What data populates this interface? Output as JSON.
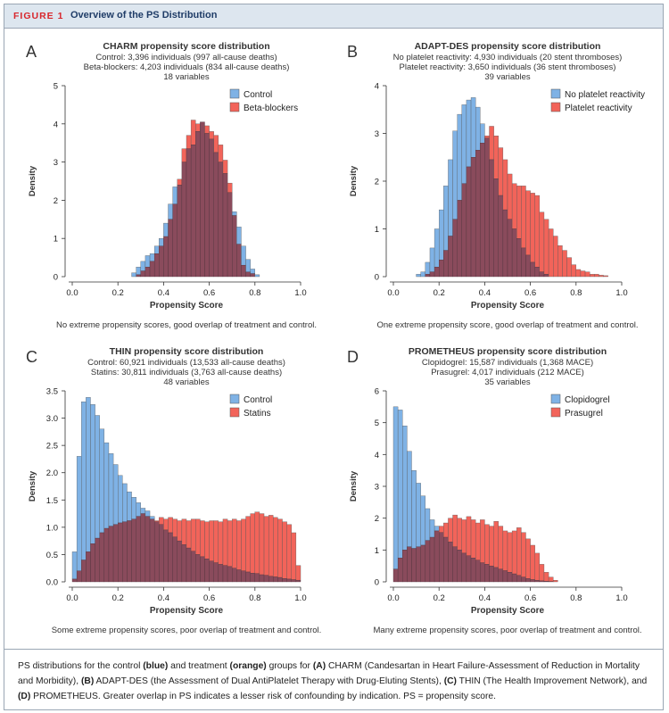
{
  "figure": {
    "label": "FIGURE 1",
    "title": "Overview of the PS Distribution"
  },
  "caption": {
    "t1": "PS distributions for the control ",
    "b1": "(blue)",
    "t2": " and treatment ",
    "b2": "(orange)",
    "t3": " groups for ",
    "b3": "(A)",
    "t4": " CHARM (Candesartan in Heart Failure-Assessment of Reduction in Mortality and Morbidity), ",
    "b4": "(B)",
    "t5": " ADAPT-DES (the Assessment of Dual AntiPlatelet Therapy with Drug-Eluting Stents), ",
    "b5": "(C)",
    "t6": " THIN (The Health Improvement Network), and ",
    "b6": "(D)",
    "t7": " PROMETHEUS. Greater overlap in PS indicates a lesser risk of confounding by indication. PS = propensity score."
  },
  "colors": {
    "control": "#7fb2e5",
    "treatment": "#f2645a",
    "overlap": "#8a4b5c"
  },
  "chart_data": [
    {
      "type": "histogram",
      "panel": "A",
      "title": "CHARM propensity score distribution",
      "subtitle": [
        "Control: 3,396 individuals (997 all-cause deaths)",
        "Beta-blockers: 4,203 individuals (834 all-cause deaths)",
        "18 variables"
      ],
      "xlabel": "Propensity Score",
      "ylabel": "Density",
      "xlim": [
        0,
        1
      ],
      "ylim": [
        0,
        5
      ],
      "xticks": [
        "0.0",
        "0.2",
        "0.4",
        "0.6",
        "0.8",
        "1.0"
      ],
      "yticks": [
        "0",
        "1",
        "2",
        "3",
        "4",
        "5"
      ],
      "legend_position": "top-right",
      "note": "No extreme propensity scores, good overlap of treatment and control.",
      "bin_width": 0.02,
      "series": [
        {
          "name": "Control",
          "x_start": 0.26,
          "values": [
            0.1,
            0.25,
            0.4,
            0.55,
            0.6,
            0.8,
            1.0,
            1.4,
            1.9,
            2.35,
            2.4,
            3.0,
            3.35,
            3.45,
            3.8,
            4.05,
            3.75,
            3.6,
            3.25,
            3.0,
            2.7,
            2.2,
            1.7,
            1.3,
            0.8,
            0.45,
            0.2,
            0.05
          ]
        },
        {
          "name": "Beta-blockers",
          "x_start": 0.28,
          "values": [
            0.05,
            0.15,
            0.25,
            0.4,
            0.6,
            0.8,
            1.05,
            1.5,
            1.9,
            2.55,
            3.35,
            3.7,
            4.1,
            4.0,
            4.05,
            3.95,
            3.8,
            3.7,
            3.45,
            3.05,
            2.45,
            1.6,
            0.85,
            0.3,
            0.12,
            0.08
          ]
        }
      ]
    },
    {
      "type": "histogram",
      "panel": "B",
      "title": "ADAPT-DES propensity score distribution",
      "subtitle": [
        "No platelet reactivity: 4,930 individuals (20 stent thromboses)",
        "Platelet reactivity: 3,650 individuals (36 stent thromboses)",
        "39 variables"
      ],
      "xlabel": "Propensity Score",
      "ylabel": "Density",
      "xlim": [
        0,
        1
      ],
      "ylim": [
        0,
        4
      ],
      "xticks": [
        "0.0",
        "0.2",
        "0.4",
        "0.6",
        "0.8",
        "1.0"
      ],
      "yticks": [
        "0",
        "1",
        "2",
        "3",
        "4"
      ],
      "legend_position": "top-right",
      "note": "One extreme propensity score, good overlap of treatment and control.",
      "bin_width": 0.02,
      "series": [
        {
          "name": "No platelet reactivity",
          "x_start": 0.1,
          "values": [
            0.05,
            0.1,
            0.3,
            0.6,
            1.0,
            1.4,
            1.9,
            2.45,
            3.05,
            3.4,
            3.6,
            3.7,
            3.75,
            3.55,
            3.2,
            2.9,
            2.45,
            2.05,
            1.7,
            1.4,
            1.2,
            1.0,
            0.8,
            0.6,
            0.45,
            0.3,
            0.2,
            0.1,
            0.05
          ]
        },
        {
          "name": "Platelet reactivity",
          "x_start": 0.14,
          "values": [
            0.05,
            0.1,
            0.2,
            0.35,
            0.55,
            0.85,
            1.2,
            1.6,
            1.95,
            2.3,
            2.5,
            2.65,
            2.8,
            2.95,
            3.15,
            2.95,
            2.7,
            2.45,
            2.15,
            1.95,
            1.9,
            1.9,
            1.8,
            1.75,
            1.7,
            1.35,
            1.2,
            1.0,
            0.85,
            0.65,
            0.55,
            0.4,
            0.25,
            0.15,
            0.12,
            0.1,
            0.05,
            0.05,
            0.03,
            0.02
          ]
        }
      ]
    },
    {
      "type": "histogram",
      "panel": "C",
      "title": "THIN propensity score distribution",
      "subtitle": [
        "Control: 60,921 individuals (13,533 all-cause deaths)",
        "Statins: 30,811 individuals (3,763 all-cause deaths)",
        "48 variables"
      ],
      "xlabel": "Propensity Score",
      "ylabel": "Density",
      "xlim": [
        0,
        1
      ],
      "ylim": [
        0,
        3.5
      ],
      "xticks": [
        "0.0",
        "0.2",
        "0.4",
        "0.6",
        "0.8",
        "1.0"
      ],
      "yticks": [
        "0.0",
        "0.5",
        "1.0",
        "1.5",
        "2.0",
        "2.5",
        "3.0",
        "3.5"
      ],
      "legend_position": "top-right",
      "note": "Some extreme propensity scores, poor overlap of treatment and control.",
      "bin_width": 0.02,
      "series": [
        {
          "name": "Control",
          "x_start": 0.0,
          "values": [
            0.55,
            2.3,
            3.3,
            3.38,
            3.25,
            3.05,
            2.8,
            2.55,
            2.35,
            2.15,
            1.95,
            1.8,
            1.65,
            1.55,
            1.45,
            1.35,
            1.3,
            1.2,
            1.1,
            1.05,
            0.95,
            0.9,
            0.82,
            0.75,
            0.68,
            0.62,
            0.56,
            0.5,
            0.46,
            0.42,
            0.38,
            0.35,
            0.32,
            0.3,
            0.28,
            0.25,
            0.22,
            0.2,
            0.18,
            0.16,
            0.15,
            0.13,
            0.12,
            0.1,
            0.09,
            0.08,
            0.06,
            0.05,
            0.04,
            0.03
          ]
        },
        {
          "name": "Statins",
          "x_start": 0.0,
          "values": [
            0.05,
            0.2,
            0.4,
            0.55,
            0.7,
            0.8,
            0.9,
            0.98,
            1.02,
            1.05,
            1.08,
            1.1,
            1.12,
            1.15,
            1.2,
            1.25,
            1.2,
            1.15,
            1.12,
            1.18,
            1.15,
            1.18,
            1.15,
            1.12,
            1.15,
            1.12,
            1.15,
            1.15,
            1.12,
            1.1,
            1.12,
            1.12,
            1.1,
            1.15,
            1.12,
            1.15,
            1.12,
            1.15,
            1.2,
            1.25,
            1.28,
            1.25,
            1.2,
            1.22,
            1.18,
            1.15,
            1.1,
            1.05,
            0.9,
            0.3
          ]
        }
      ]
    },
    {
      "type": "histogram",
      "panel": "D",
      "title": "PROMETHEUS propensity score distribution",
      "subtitle": [
        "Clopidogrel: 15,587 individuals (1,368 MACE)",
        "Prasugrel: 4,017 individuals (212 MACE)",
        "35 variables"
      ],
      "xlabel": "Propensity Score",
      "ylabel": "Density",
      "xlim": [
        0,
        1
      ],
      "ylim": [
        0,
        6
      ],
      "xticks": [
        "0.0",
        "0.2",
        "0.4",
        "0.6",
        "0.8",
        "1.0"
      ],
      "yticks": [
        "0",
        "1",
        "2",
        "3",
        "4",
        "5",
        "6"
      ],
      "legend_position": "top-right",
      "note": "Many extreme propensity scores, poor overlap of treatment and control.",
      "bin_width": 0.02,
      "series": [
        {
          "name": "Clopidogrel",
          "x_start": 0.0,
          "values": [
            5.5,
            5.4,
            4.9,
            4.1,
            3.5,
            3.1,
            2.7,
            2.3,
            1.95,
            1.75,
            1.55,
            1.4,
            1.25,
            1.1,
            1.0,
            0.9,
            0.82,
            0.75,
            0.68,
            0.6,
            0.55,
            0.5,
            0.45,
            0.4,
            0.35,
            0.3,
            0.25,
            0.2,
            0.15,
            0.1,
            0.07,
            0.05,
            0.03,
            0.02,
            0.01
          ]
        },
        {
          "name": "Prasugrel",
          "x_start": 0.0,
          "values": [
            0.4,
            0.75,
            1.0,
            1.1,
            1.05,
            1.1,
            1.15,
            1.3,
            1.4,
            1.6,
            1.75,
            1.85,
            2.0,
            2.1,
            2.0,
            1.95,
            2.05,
            1.95,
            1.85,
            1.95,
            1.8,
            1.75,
            1.9,
            1.75,
            1.6,
            1.55,
            1.6,
            1.7,
            1.55,
            1.35,
            1.15,
            0.9,
            0.55,
            0.3,
            0.15,
            0.05
          ]
        }
      ]
    }
  ]
}
